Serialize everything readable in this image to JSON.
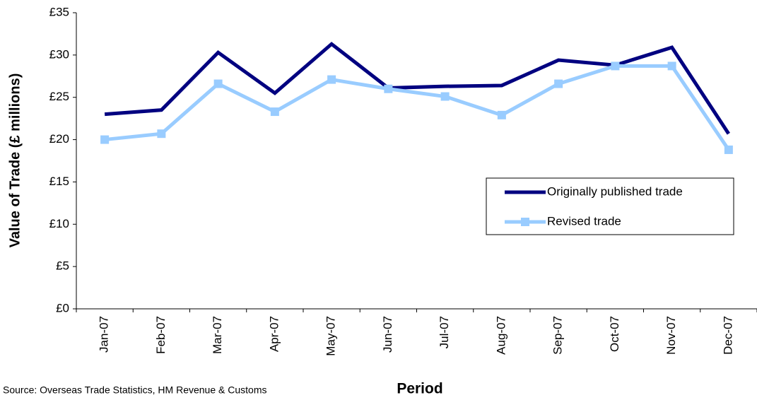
{
  "chart_data": {
    "type": "line",
    "source": "Source: Overseas Trade Statistics, HM Revenue & Customs",
    "x_label": "Period",
    "y_label": "Value of Trade (£ millions)",
    "categories": [
      "Jan-07",
      "Feb-07",
      "Mar-07",
      "Apr-07",
      "May-07",
      "Jun-07",
      "Jul-07",
      "Aug-07",
      "Sep-07",
      "Oct-07",
      "Nov-07",
      "Dec-07"
    ],
    "series": [
      {
        "name": "Originally published trade",
        "color": "#000080",
        "marker": "none",
        "values": [
          23.0,
          23.5,
          30.3,
          25.5,
          31.3,
          26.1,
          26.3,
          26.4,
          29.4,
          28.8,
          30.9,
          20.7
        ]
      },
      {
        "name": "Revised trade",
        "color": "#99ccff",
        "marker": "square",
        "values": [
          20.0,
          20.7,
          26.6,
          23.3,
          27.1,
          26.0,
          25.1,
          22.9,
          26.6,
          28.7,
          28.7,
          18.8
        ]
      }
    ],
    "ylim": [
      0,
      35
    ],
    "yticks": [
      {
        "value": 0,
        "label": "£0"
      },
      {
        "value": 5,
        "label": "£5"
      },
      {
        "value": 10,
        "label": "£10"
      },
      {
        "value": 15,
        "label": "£15"
      },
      {
        "value": 20,
        "label": "£20"
      },
      {
        "value": 25,
        "label": "£25"
      },
      {
        "value": 30,
        "label": "£30"
      },
      {
        "value": 35,
        "label": "£35"
      }
    ],
    "legend": "right"
  }
}
